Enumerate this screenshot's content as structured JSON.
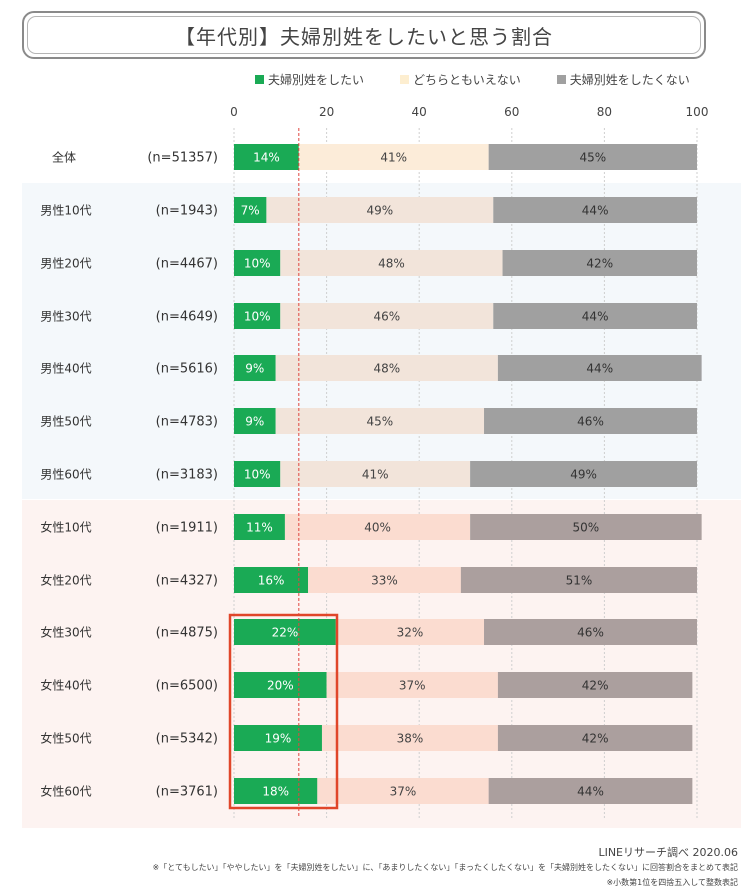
{
  "chart_data": {
    "type": "bar",
    "orientation": "horizontal",
    "stacked": true,
    "title": "【年代別】夫婦別姓をしたいと思う割合",
    "xlim": [
      0,
      100
    ],
    "xticks": [
      "0",
      "20",
      "40",
      "60",
      "80",
      "100"
    ],
    "legend_position": "top",
    "categories": [
      "全体",
      "男性10代",
      "男性20代",
      "男性30代",
      "男性40代",
      "男性50代",
      "男性60代",
      "女性10代",
      "女性20代",
      "女性30代",
      "女性40代",
      "女性50代",
      "女性60代"
    ],
    "sample_sizes": [
      "(n=51357)",
      "(n=1943)",
      "(n=4467)",
      "(n=4649)",
      "(n=5616)",
      "(n=4783)",
      "(n=3183)",
      "(n=1911)",
      "(n=4327)",
      "(n=4875)",
      "(n=6500)",
      "(n=5342)",
      "(n=3761)"
    ],
    "series": [
      {
        "name": "夫婦別姓をしたい",
        "values": [
          14,
          7,
          10,
          10,
          9,
          9,
          10,
          11,
          16,
          22,
          20,
          19,
          18
        ],
        "labels": [
          "14%",
          "7%",
          "10%",
          "10%",
          "9%",
          "9%",
          "10%",
          "11%",
          "16%",
          "22%",
          "20%",
          "19%",
          "18%"
        ]
      },
      {
        "name": "どちらともいえない",
        "values": [
          41,
          49,
          48,
          46,
          48,
          45,
          41,
          40,
          33,
          32,
          37,
          38,
          37
        ],
        "labels": [
          "41%",
          "49%",
          "48%",
          "46%",
          "48%",
          "45%",
          "41%",
          "40%",
          "33%",
          "32%",
          "37%",
          "38%",
          "37%"
        ]
      },
      {
        "name": "夫婦別姓をしたくない",
        "values": [
          45,
          44,
          42,
          44,
          44,
          46,
          49,
          50,
          51,
          46,
          42,
          42,
          44
        ],
        "labels": [
          "45%",
          "44%",
          "42%",
          "44%",
          "44%",
          "46%",
          "49%",
          "50%",
          "51%",
          "46%",
          "42%",
          "42%",
          "44%"
        ]
      }
    ],
    "reference_line_value": 14,
    "highlighted_categories": [
      "女性30代",
      "女性40代",
      "女性50代",
      "女性60代"
    ],
    "highlighted_series": "夫婦別姓をしたい",
    "colors": {
      "want": "#1aaa55",
      "neutral_male": "#f2e4da",
      "neutral_female": "#fbdcd0",
      "neutral_total": "#fcecd9",
      "not_want_male": "#a0a0a0",
      "not_want_female": "#ab9f9e",
      "legend_neutral": "#fdeed0",
      "male_band": "#f4f8fb",
      "female_band": "#fdf3f1",
      "reference_line": "#e0463f",
      "highlight_box": "#e0462a"
    }
  },
  "source": "LINEリサーチ調べ 2020.06",
  "notes": [
    "※「とてもしたい」「ややしたい」を「夫婦別姓をしたい」に、「あまりしたくない」「まったくしたくない」を「夫婦別姓をしたくない」に回答割合をまとめて表記",
    "※小数第1位を四捨五入して整数表記"
  ]
}
